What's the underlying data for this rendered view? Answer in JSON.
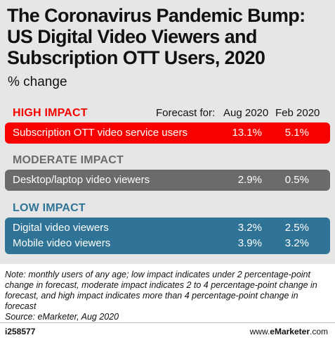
{
  "title": "The Coronavirus Pandemic Bump: US Digital Video Viewers and Subscription OTT Users, 2020",
  "subtitle": "% change",
  "chart_data": {
    "type": "table",
    "columns_prefix": "Forecast for:",
    "columns": [
      "Aug 2020",
      "Feb 2020"
    ],
    "groups": [
      {
        "label": "HIGH IMPACT",
        "color": "#f90000",
        "rows": [
          {
            "label": "Subscription OTT video service users",
            "values": [
              "13.1%",
              "5.1%"
            ]
          }
        ]
      },
      {
        "label": "MODERATE IMPACT",
        "color": "#6b6b6b",
        "rows": [
          {
            "label": "Desktop/laptop video viewers",
            "values": [
              "2.9%",
              "0.5%"
            ]
          }
        ]
      },
      {
        "label": "LOW IMPACT",
        "color": "#2f7396",
        "rows": [
          {
            "label": "Digital video viewers",
            "values": [
              "3.2%",
              "2.5%"
            ]
          },
          {
            "label": "Mobile video viewers",
            "values": [
              "3.9%",
              "3.2%"
            ]
          }
        ]
      }
    ]
  },
  "note": "Note: monthly users of any age; low impact indicates under 2 percentage-point change in forecast, moderate impact indicates 2 to 4 percentage-point change in forecast, and high impact indicates more than 4 percentage-point change in forecast",
  "source": "Source: eMarketer, Aug 2020",
  "footer": {
    "id": "i258577",
    "site_prefix": "www.",
    "site_brand": "eMarketer",
    "site_suffix": ".com"
  }
}
